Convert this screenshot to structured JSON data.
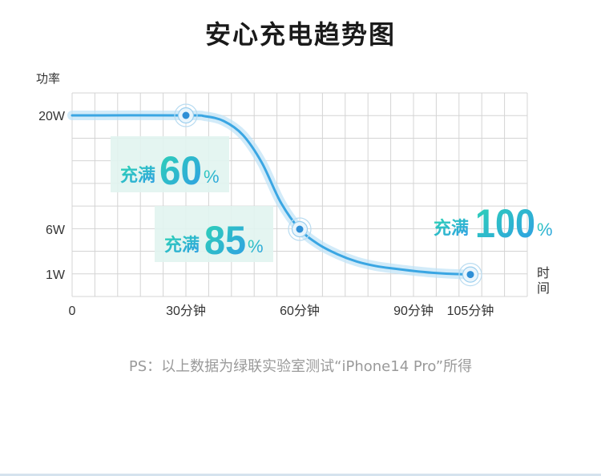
{
  "page": {
    "title": "安心充电趋势图",
    "note": "PS：以上数据为绿联实验室测试“iPhone14 Pro”所得"
  },
  "chart_data": {
    "type": "line",
    "title": "安心充电趋势图",
    "ylabel": "功率",
    "xlabel": "时间",
    "x_ticks": [
      {
        "value": 0,
        "label": "0"
      },
      {
        "value": 30,
        "label": "30分钟"
      },
      {
        "value": 60,
        "label": "60分钟"
      },
      {
        "value": 90,
        "label": "90分钟"
      },
      {
        "value": 105,
        "label": "105分钟"
      }
    ],
    "y_ticks": [
      {
        "value": 20,
        "label": "20W"
      },
      {
        "value": 6,
        "label": "6W"
      },
      {
        "value": 1,
        "label": "1W"
      }
    ],
    "xlim": [
      0,
      120
    ],
    "grid": true,
    "series": [
      {
        "x": [
          0,
          30,
          35,
          40,
          45,
          50,
          55,
          60,
          65,
          70,
          75,
          80,
          85,
          90,
          95,
          100,
          105
        ],
        "y": [
          20,
          20,
          19.9,
          19.3,
          17.6,
          14.2,
          9.3,
          6,
          4.3,
          3.2,
          2.4,
          1.9,
          1.6,
          1.35,
          1.15,
          1.02,
          0.95
        ]
      }
    ],
    "markers": [
      {
        "x": 30,
        "y": 20
      },
      {
        "x": 60,
        "y": 6
      },
      {
        "x": 105,
        "y": 0.95
      }
    ],
    "annotations": [
      {
        "prefix": "充满",
        "value": "60",
        "unit": "%"
      },
      {
        "prefix": "充满",
        "value": "85",
        "unit": "%"
      },
      {
        "prefix": "充满",
        "value": "100",
        "unit": "%"
      }
    ],
    "colors": {
      "line": "#3aa6e3",
      "glow": "#bfe3f6",
      "grid": "#d4d4d4",
      "annotation_gradient_start": "#2ed3b4",
      "annotation_gradient_end": "#2f9de6",
      "box": "#e1f4f0"
    }
  }
}
